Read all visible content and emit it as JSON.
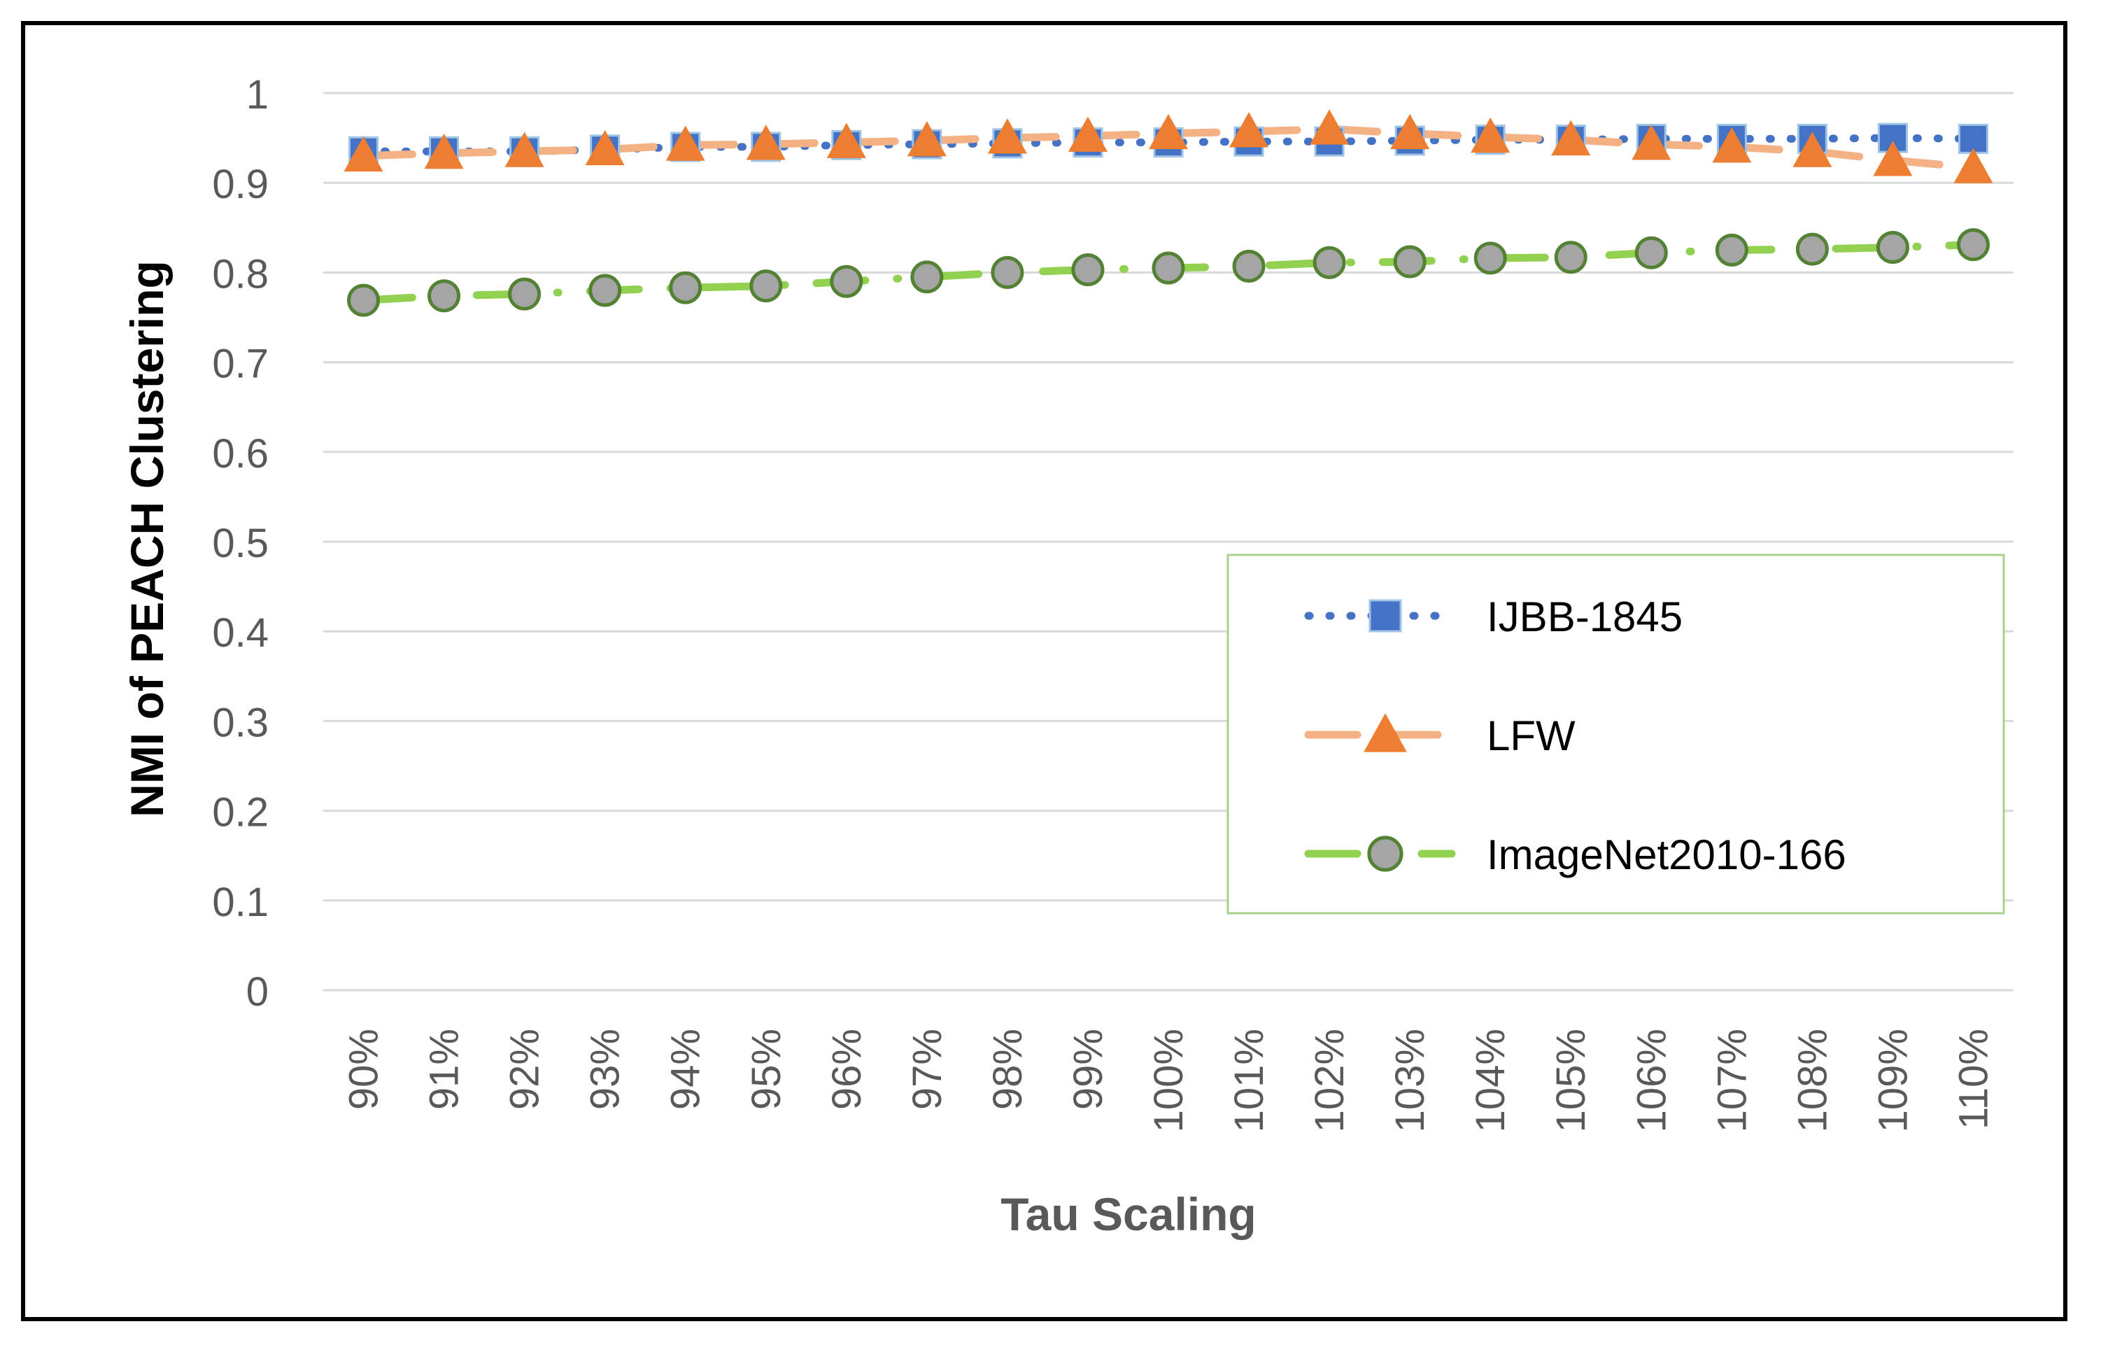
{
  "chart_data": {
    "type": "line",
    "title": "",
    "xlabel": "Tau Scaling",
    "ylabel": "NMI of  PEACH  Clustering",
    "ylim": [
      0,
      1
    ],
    "yticks": [
      "0",
      "0.1",
      "0.2",
      "0.3",
      "0.4",
      "0.5",
      "0.6",
      "0.7",
      "0.8",
      "0.9",
      "1"
    ],
    "categories": [
      "90%",
      "91%",
      "92%",
      "93%",
      "94%",
      "95%",
      "96%",
      "97%",
      "98%",
      "99%",
      "100%",
      "101%",
      "102%",
      "103%",
      "104%",
      "105%",
      "106%",
      "107%",
      "108%",
      "109%",
      "110%"
    ],
    "grid": true,
    "legend_position": "center-right",
    "series": [
      {
        "name": "IJBB-1845",
        "color": "#4472C4",
        "marker": "square",
        "line_style": "dotted",
        "values": [
          0.935,
          0.935,
          0.935,
          0.937,
          0.94,
          0.94,
          0.942,
          0.943,
          0.944,
          0.945,
          0.945,
          0.946,
          0.946,
          0.947,
          0.948,
          0.948,
          0.949,
          0.949,
          0.949,
          0.95,
          0.949
        ]
      },
      {
        "name": "LFW",
        "color": "#ED7D31",
        "line_color": "#F4B183",
        "marker": "triangle",
        "line_style": "dashed",
        "values": [
          0.93,
          0.933,
          0.935,
          0.937,
          0.942,
          0.943,
          0.945,
          0.947,
          0.95,
          0.952,
          0.955,
          0.957,
          0.96,
          0.955,
          0.951,
          0.948,
          0.943,
          0.94,
          0.935,
          0.925,
          0.917
        ]
      },
      {
        "name": "ImageNet2010-166",
        "color": "#70AD47",
        "line_color": "#92D050",
        "marker": "circle",
        "marker_fill": "#A5A5A5",
        "marker_edge": "#548235",
        "line_style": "long-dash-dot",
        "values": [
          0.769,
          0.774,
          0.776,
          0.78,
          0.783,
          0.785,
          0.79,
          0.795,
          0.8,
          0.803,
          0.805,
          0.807,
          0.811,
          0.812,
          0.816,
          0.817,
          0.822,
          0.825,
          0.826,
          0.828,
          0.831
        ]
      }
    ]
  }
}
